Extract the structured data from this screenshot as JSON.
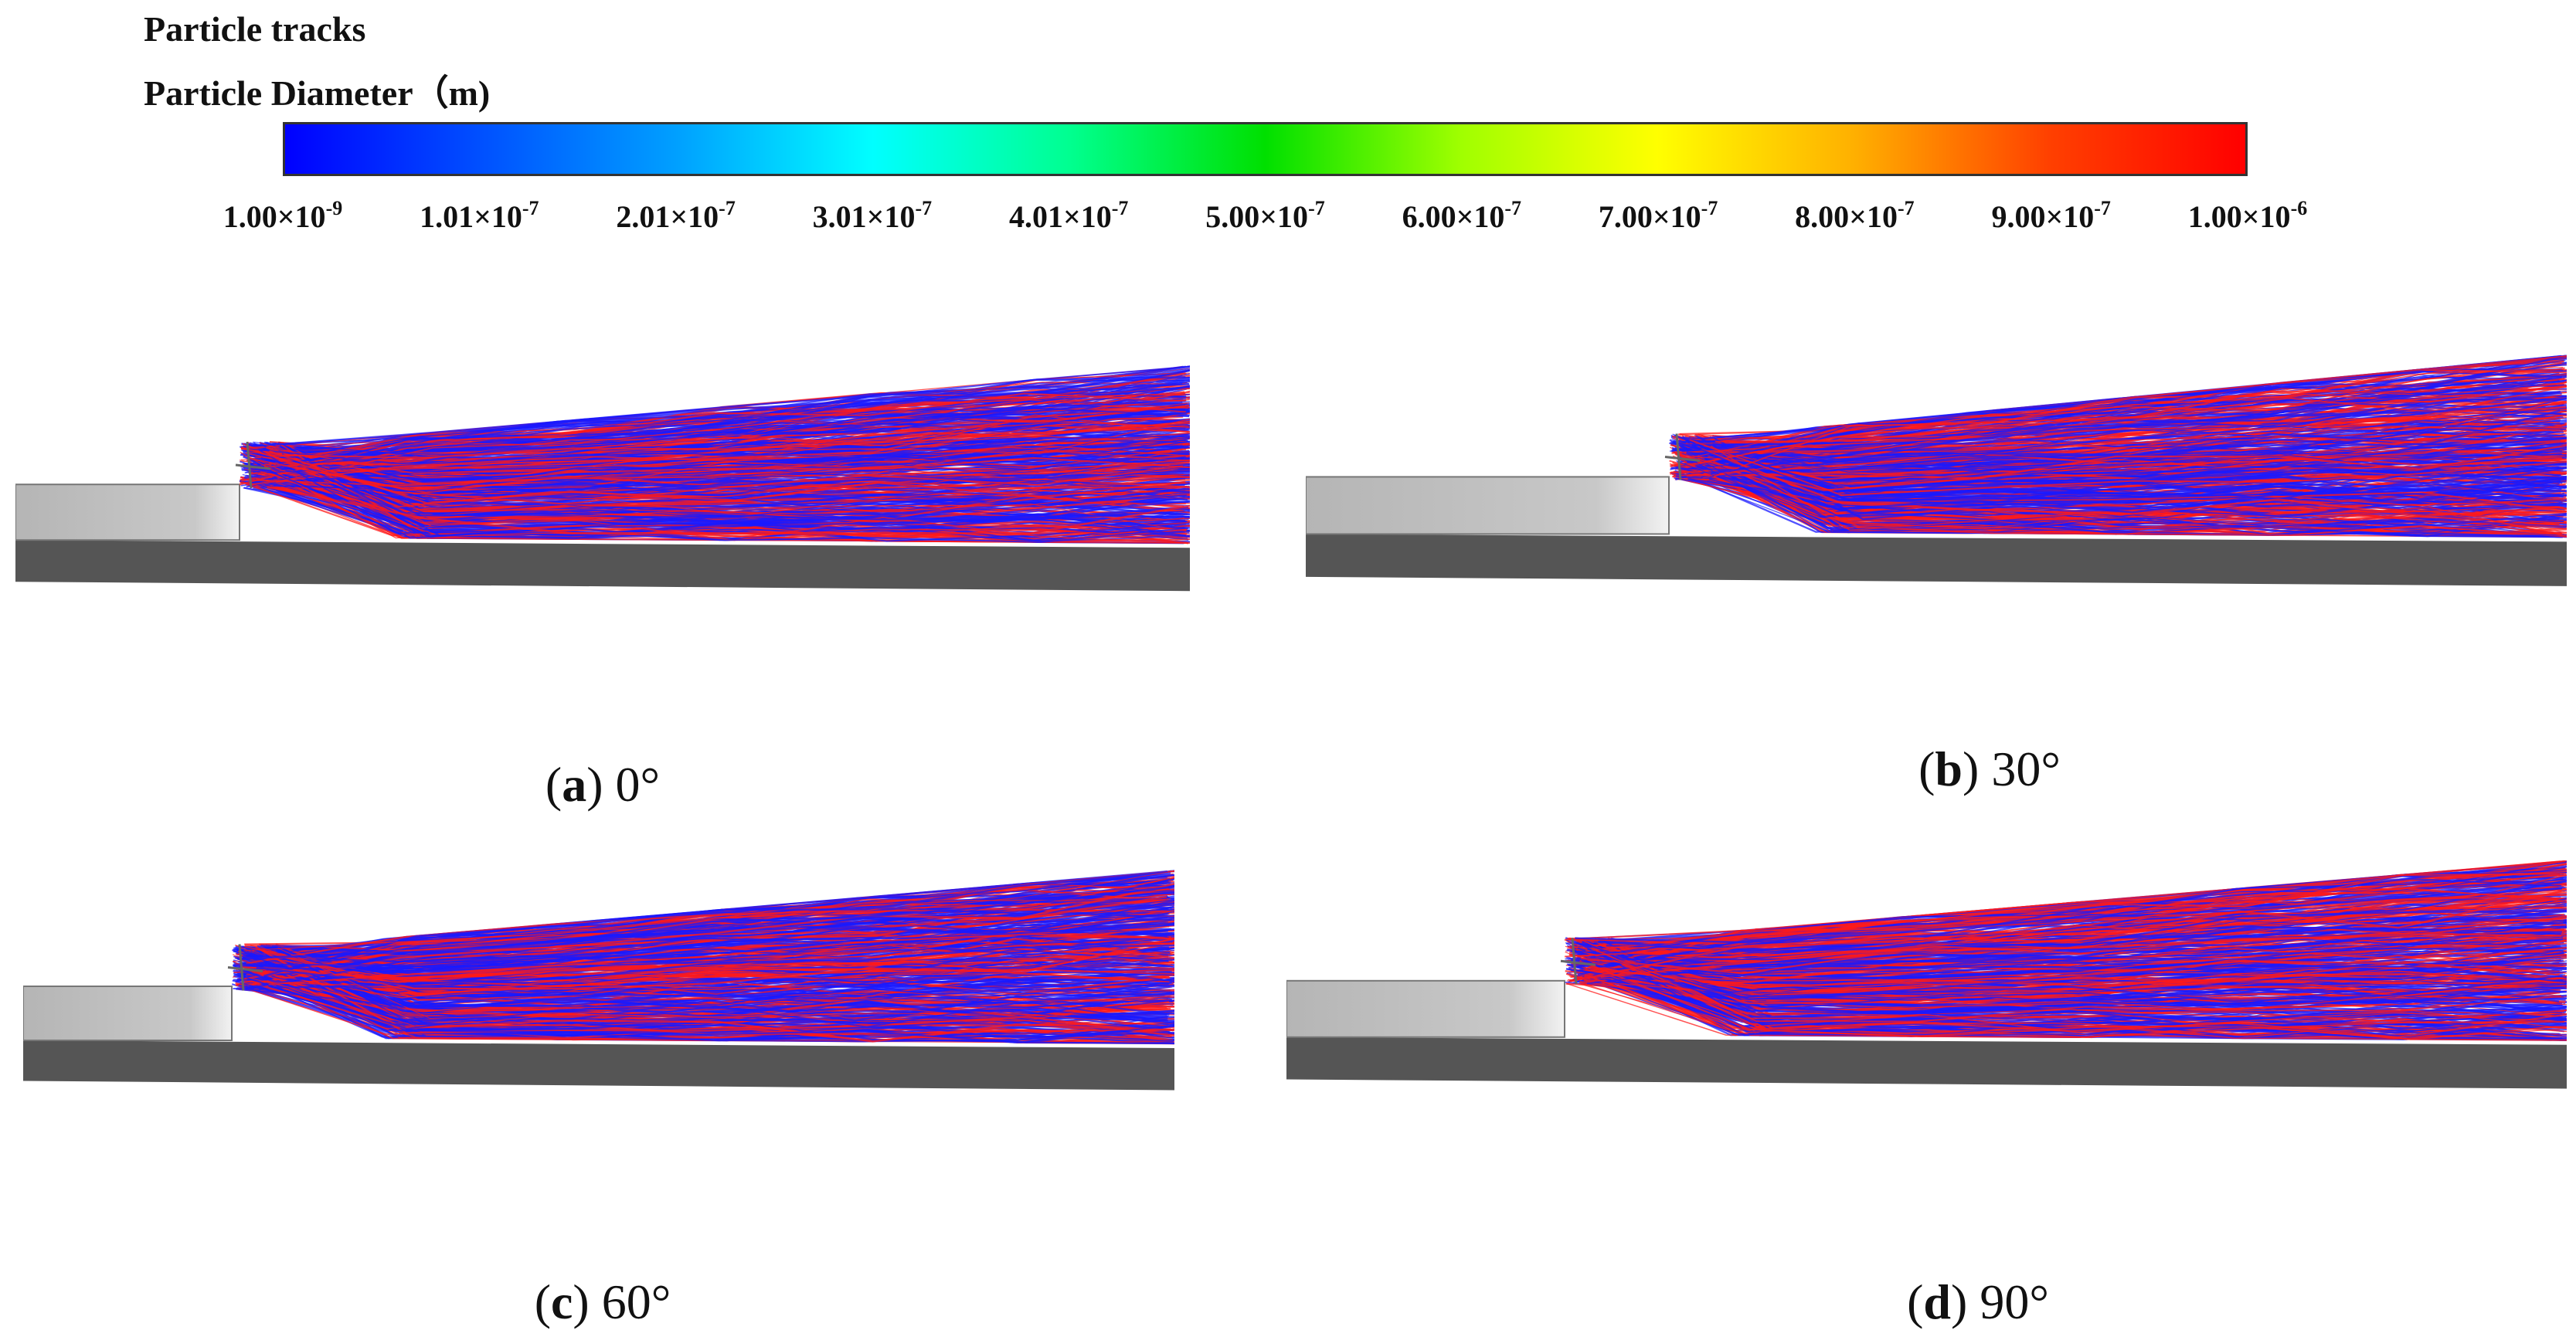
{
  "legend": {
    "title_line1": "Particle tracks",
    "title_line2": "Particle Diameter（m)",
    "colorbar_colors": [
      "#0000ff",
      "#00a0ff",
      "#00ffff",
      "#00e000",
      "#ffff00",
      "#ffb000",
      "#ff0000"
    ],
    "ticks": [
      {
        "mantissa": "1.00×10",
        "exp": "-9"
      },
      {
        "mantissa": "1.01×10",
        "exp": "-7"
      },
      {
        "mantissa": "2.01×10",
        "exp": "-7"
      },
      {
        "mantissa": "3.01×10",
        "exp": "-7"
      },
      {
        "mantissa": "4.01×10",
        "exp": "-7"
      },
      {
        "mantissa": "5.00×10",
        "exp": "-7"
      },
      {
        "mantissa": "6.00×10",
        "exp": "-7"
      },
      {
        "mantissa": "7.00×10",
        "exp": "-7"
      },
      {
        "mantissa": "8.00×10",
        "exp": "-7"
      },
      {
        "mantissa": "9.00×10",
        "exp": "-7"
      },
      {
        "mantissa": "1.00×10",
        "exp": "-6"
      }
    ]
  },
  "panels": [
    {
      "letter": "a",
      "angle": "0°"
    },
    {
      "letter": "b",
      "angle": "30°"
    },
    {
      "letter": "c",
      "angle": "60°"
    },
    {
      "letter": "d",
      "angle": "90°"
    }
  ],
  "colors": {
    "track_blue": "#1a1aff",
    "track_red": "#ff1a1a",
    "wall_light": "#c8c8c8",
    "wall_dark": "#555555"
  }
}
